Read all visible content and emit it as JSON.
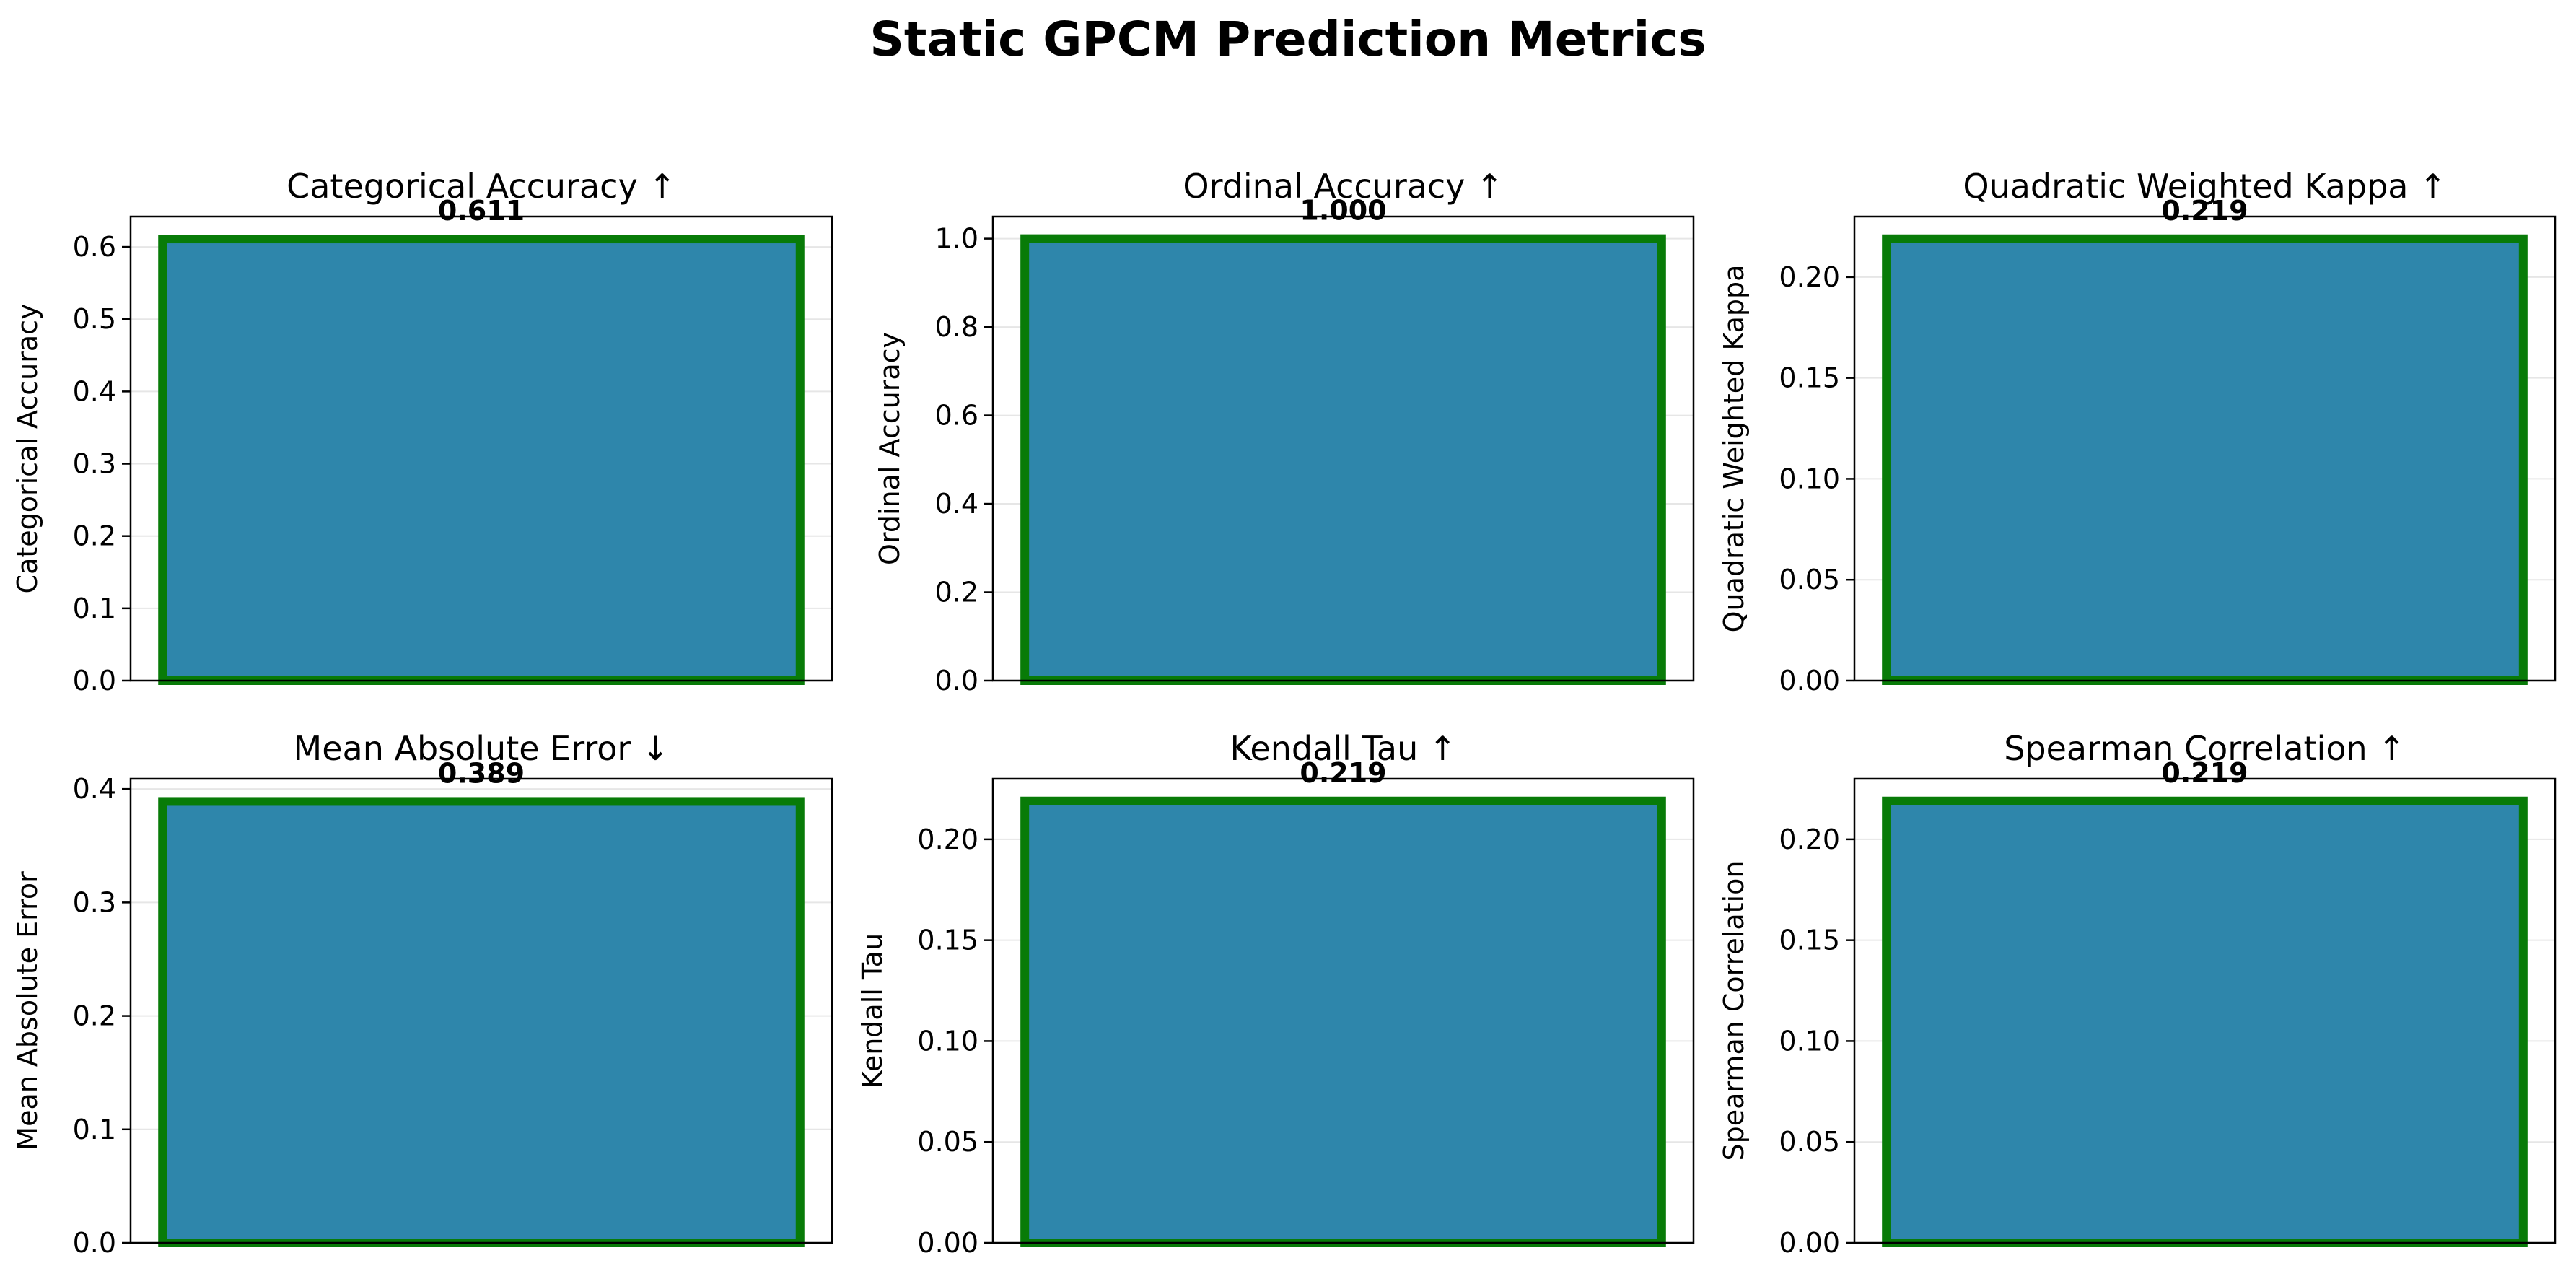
{
  "figure_title": "Static GPCM Prediction Metrics",
  "colors": {
    "bar_fill": "#2e86ab",
    "bar_edge": "#087b08",
    "grid": "#e6e6e6",
    "axes": "#000000"
  },
  "chart_data": [
    {
      "type": "bar",
      "title": "Categorical Accuracy ↑",
      "ylabel": "Categorical Accuracy",
      "value": 0.611,
      "value_label": "0.611",
      "ylim": [
        0,
        0.642
      ],
      "yticks": [
        0.0,
        0.1,
        0.2,
        0.3,
        0.4,
        0.5,
        0.6
      ],
      "ytick_labels": [
        "0.0",
        "0.1",
        "0.2",
        "0.3",
        "0.4",
        "0.5",
        "0.6"
      ],
      "grid": true
    },
    {
      "type": "bar",
      "title": "Ordinal Accuracy ↑",
      "ylabel": "Ordinal Accuracy",
      "value": 1.0,
      "value_label": "1.000",
      "ylim": [
        0,
        1.05
      ],
      "yticks": [
        0.0,
        0.2,
        0.4,
        0.6,
        0.8,
        1.0
      ],
      "ytick_labels": [
        "0.0",
        "0.2",
        "0.4",
        "0.6",
        "0.8",
        "1.0"
      ],
      "grid": true
    },
    {
      "type": "bar",
      "title": "Quadratic Weighted Kappa ↑",
      "ylabel": "Quadratic Weighted Kappa",
      "value": 0.219,
      "value_label": "0.219",
      "ylim": [
        0,
        0.23
      ],
      "yticks": [
        0.0,
        0.05,
        0.1,
        0.15,
        0.2
      ],
      "ytick_labels": [
        "0.00",
        "0.05",
        "0.10",
        "0.15",
        "0.20"
      ],
      "grid": true
    },
    {
      "type": "bar",
      "title": "Mean Absolute Error ↓",
      "ylabel": "Mean Absolute Error",
      "value": 0.389,
      "value_label": "0.389",
      "ylim": [
        0,
        0.409
      ],
      "yticks": [
        0.0,
        0.1,
        0.2,
        0.3,
        0.4
      ],
      "ytick_labels": [
        "0.0",
        "0.1",
        "0.2",
        "0.3",
        "0.4"
      ],
      "grid": true
    },
    {
      "type": "bar",
      "title": "Kendall Tau ↑",
      "ylabel": "Kendall Tau",
      "value": 0.219,
      "value_label": "0.219",
      "ylim": [
        0,
        0.23
      ],
      "yticks": [
        0.0,
        0.05,
        0.1,
        0.15,
        0.2
      ],
      "ytick_labels": [
        "0.00",
        "0.05",
        "0.10",
        "0.15",
        "0.20"
      ],
      "grid": true
    },
    {
      "type": "bar",
      "title": "Spearman Correlation ↑",
      "ylabel": "Spearman Correlation",
      "value": 0.219,
      "value_label": "0.219",
      "ylim": [
        0,
        0.23
      ],
      "yticks": [
        0.0,
        0.05,
        0.1,
        0.15,
        0.2
      ],
      "ytick_labels": [
        "0.00",
        "0.05",
        "0.10",
        "0.15",
        "0.20"
      ],
      "grid": true
    }
  ]
}
